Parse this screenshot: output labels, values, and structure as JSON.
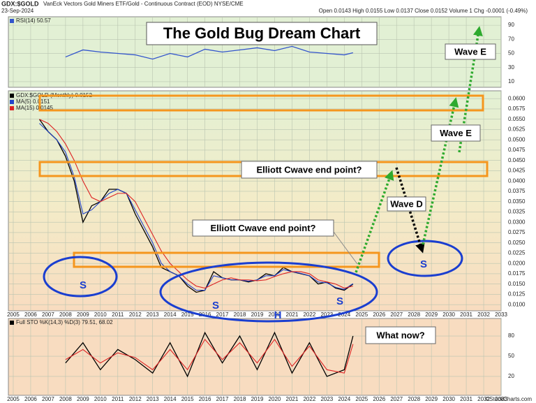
{
  "header": {
    "symbol": "GDX:$GOLD",
    "description": "VanEck Vectors Gold Miners ETF/Gold - Continuous Contract (EOD) NYSE/CME",
    "date": "23-Sep-2024",
    "quote": "Open 0.0143 High 0.0155 Low 0.0137 Close 0.0152 Volume 1 Chg -0.0001 (-0.49%)",
    "source": "©StockCharts.com"
  },
  "chart_data": [
    {
      "type": "line",
      "x": [
        2008,
        2009,
        2010,
        2011,
        2012,
        2013,
        2014,
        2015,
        2016,
        2017,
        2018,
        2019,
        2020,
        2021,
        2022,
        2023,
        2024,
        2024.5
      ],
      "series": [
        {
          "name": "RSI(14) 50.57",
          "color": "#3355cc",
          "values": [
            45,
            55,
            52,
            50,
            48,
            42,
            50,
            45,
            56,
            52,
            55,
            58,
            54,
            60,
            52,
            50,
            48,
            51
          ]
        }
      ],
      "xlim": [
        2004.72,
        2033
      ],
      "xticks": [
        2005,
        2006,
        2007,
        2008,
        2009,
        2010,
        2011,
        2012,
        2013,
        2014,
        2015,
        2016,
        2017,
        2018,
        2019,
        2020,
        2021,
        2022,
        2023,
        2024,
        2025,
        2026,
        2027,
        2028,
        2029,
        2030,
        2031,
        2032,
        2033
      ],
      "ylim": [
        2,
        102
      ],
      "yticks": [
        10,
        30,
        50,
        70,
        90
      ],
      "grid": true
    },
    {
      "type": "line",
      "title": "The Gold Bug Dream Chart",
      "x": [
        2006.5,
        2007,
        2007.5,
        2008,
        2008.5,
        2009,
        2009.5,
        2010,
        2010.5,
        2011,
        2011.5,
        2012,
        2012.5,
        2013,
        2013.5,
        2014,
        2014.5,
        2015,
        2015.5,
        2016,
        2016.5,
        2017,
        2017.5,
        2018,
        2018.5,
        2019,
        2019.5,
        2020,
        2020.5,
        2021,
        2021.5,
        2022,
        2022.5,
        2023,
        2023.5,
        2024,
        2024.5
      ],
      "series": [
        {
          "name": "GDX:$GOLD (Monthly) 0.0152",
          "color": "#000000",
          "values": [
            0.055,
            0.052,
            0.05,
            0.046,
            0.04,
            0.03,
            0.034,
            0.035,
            0.038,
            0.038,
            0.037,
            0.032,
            0.028,
            0.024,
            0.019,
            0.018,
            0.017,
            0.0145,
            0.013,
            0.0135,
            0.018,
            0.0165,
            0.016,
            0.016,
            0.0155,
            0.016,
            0.0175,
            0.017,
            0.019,
            0.018,
            0.0175,
            0.017,
            0.015,
            0.0155,
            0.014,
            0.0135,
            0.015
          ]
        },
        {
          "name": "MA(5) 0.0151",
          "color": "#2244cc",
          "values": [
            0.054,
            0.052,
            0.05,
            0.047,
            0.041,
            0.032,
            0.033,
            0.035,
            0.037,
            0.038,
            0.037,
            0.033,
            0.029,
            0.025,
            0.02,
            0.018,
            0.017,
            0.015,
            0.0135,
            0.0135,
            0.017,
            0.0165,
            0.016,
            0.016,
            0.0157,
            0.016,
            0.017,
            0.017,
            0.0185,
            0.018,
            0.0176,
            0.017,
            0.0155,
            0.0153,
            0.0142,
            0.0137,
            0.0151
          ]
        },
        {
          "name": "MA(15) 0.0145",
          "color": "#dd2222",
          "values": [
            0.055,
            0.054,
            0.052,
            0.049,
            0.045,
            0.04,
            0.036,
            0.035,
            0.036,
            0.037,
            0.037,
            0.035,
            0.031,
            0.027,
            0.023,
            0.02,
            0.018,
            0.016,
            0.0145,
            0.014,
            0.015,
            0.016,
            0.0165,
            0.016,
            0.016,
            0.0158,
            0.016,
            0.0168,
            0.0175,
            0.018,
            0.018,
            0.0175,
            0.016,
            0.0155,
            0.015,
            0.014,
            0.0145
          ]
        }
      ],
      "xlim": [
        2004.72,
        2033
      ],
      "xticks": [
        2005,
        2006,
        2007,
        2008,
        2009,
        2010,
        2011,
        2012,
        2013,
        2014,
        2015,
        2016,
        2017,
        2018,
        2019,
        2020,
        2021,
        2022,
        2023,
        2024,
        2025,
        2026,
        2027,
        2028,
        2029,
        2030,
        2031,
        2032,
        2033
      ],
      "ylim": [
        0.0085,
        0.0619
      ],
      "yticks": [
        {
          "value": 0.01,
          "label": "0.0100"
        },
        {
          "value": 0.0125,
          "label": "0.0125"
        },
        {
          "value": 0.015,
          "label": "0.0150"
        },
        {
          "value": 0.0175,
          "label": "0.0175"
        },
        {
          "value": 0.02,
          "label": "0.0200"
        },
        {
          "value": 0.0225,
          "label": "0.0225"
        },
        {
          "value": 0.025,
          "label": "0.0250"
        },
        {
          "value": 0.0275,
          "label": "0.0275"
        },
        {
          "value": 0.03,
          "label": "0.0300"
        },
        {
          "value": 0.0325,
          "label": "0.0325"
        },
        {
          "value": 0.035,
          "label": "0.0350"
        },
        {
          "value": 0.0375,
          "label": "0.0375"
        },
        {
          "value": 0.04,
          "label": "0.0400"
        },
        {
          "value": 0.0425,
          "label": "0.0425"
        },
        {
          "value": 0.045,
          "label": "0.0450"
        },
        {
          "value": 0.0475,
          "label": "0.0475"
        },
        {
          "value": 0.05,
          "label": "0.0500"
        },
        {
          "value": 0.0525,
          "label": "0.0525"
        },
        {
          "value": 0.055,
          "label": "0.0550"
        },
        {
          "value": 0.0575,
          "label": "0.0575"
        },
        {
          "value": 0.06,
          "label": "0.0600"
        }
      ],
      "grid": true,
      "annotations": [
        "Wave E",
        "Wave E",
        "Elliott Cwave end point?",
        "Wave D",
        "Elliott Cwave end point?",
        "S",
        "S",
        "S",
        "S",
        "H"
      ]
    },
    {
      "type": "line",
      "x": [
        2008,
        2009,
        2010,
        2011,
        2012,
        2013,
        2014,
        2015,
        2016,
        2017,
        2018,
        2019,
        2020,
        2021,
        2022,
        2023,
        2024,
        2024.5
      ],
      "series": [
        {
          "name": "Full STO %K(14,3) %D(3) 79.51, 68.02",
          "color": "#000000",
          "values": [
            40,
            70,
            30,
            60,
            45,
            25,
            70,
            20,
            85,
            40,
            80,
            30,
            85,
            25,
            70,
            20,
            30,
            80
          ]
        },
        {
          "color": "#dd2222",
          "values": [
            45,
            60,
            40,
            55,
            48,
            30,
            60,
            30,
            75,
            45,
            70,
            40,
            75,
            35,
            65,
            30,
            25,
            68
          ]
        }
      ],
      "xlim": [
        2004.72,
        2033
      ],
      "xticks": [
        2005,
        2006,
        2007,
        2008,
        2009,
        2010,
        2011,
        2012,
        2013,
        2014,
        2015,
        2016,
        2017,
        2018,
        2019,
        2020,
        2021,
        2022,
        2023,
        2024,
        2025,
        2026,
        2027,
        2028,
        2029,
        2030,
        2031,
        2032,
        2033
      ],
      "ylim": [
        -8,
        106
      ],
      "yticks": [
        20,
        50,
        80
      ],
      "grid": true,
      "annotations": [
        "What now?"
      ]
    }
  ]
}
